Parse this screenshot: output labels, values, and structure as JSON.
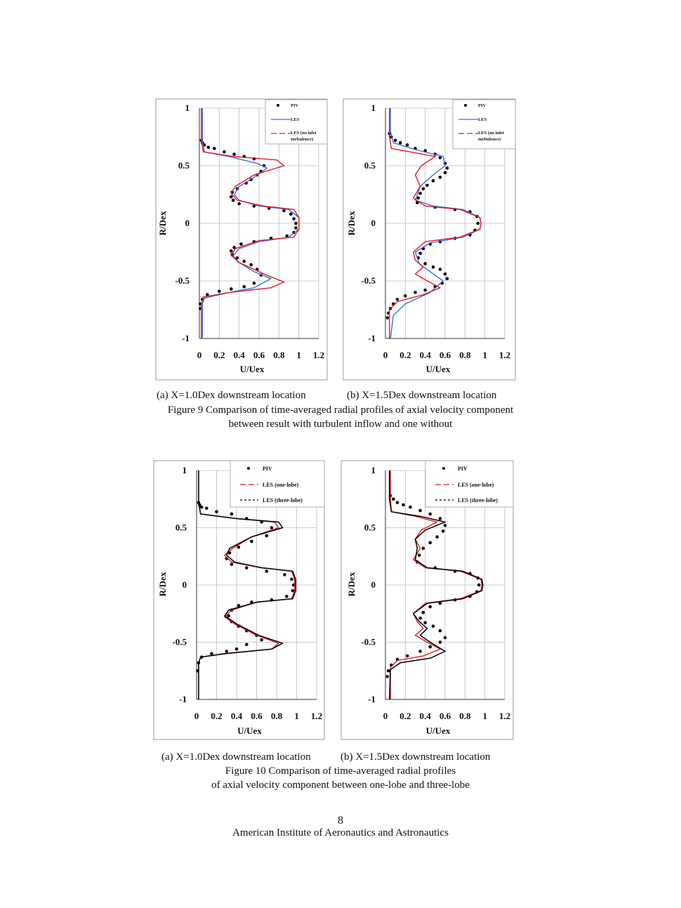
{
  "figure9": {
    "sub_a": "(a) X=1.0Dex downstream location",
    "sub_b": "(b) X=1.5Dex downstream location",
    "caption_line1": "Figure 9 Comparison of time-averaged radial profiles of axial velocity component",
    "caption_line2": "between result with turbulent inflow and one without"
  },
  "figure10": {
    "sub_a": "(a) X=1.0Dex downstream location",
    "sub_b": "(b) X=1.5Dex downstream location",
    "caption_line1": "Figure 10 Comparison of time-averaged radial profiles",
    "caption_line2": "of axial velocity component between one-lobe and three-lobe"
  },
  "footer": {
    "page_number": "8",
    "publisher": "American Institute of Aeronautics and Astronautics"
  },
  "colors": {
    "piv": "#000000",
    "les": "#3a6fd8",
    "les_red": "#e01b24",
    "three_lobe": "#000000"
  },
  "chart_data": [
    {
      "id": "fig9a",
      "type": "scatter",
      "xlabel": "U/Uex",
      "ylabel": "R/Dex",
      "xlim": [
        0,
        1.2
      ],
      "ylim": [
        -1,
        1
      ],
      "xticks": [
        "0",
        "0.2",
        "0.4",
        "0.6",
        "0.8",
        "1",
        "1.2"
      ],
      "yticks": [
        "1",
        "0.5",
        "0",
        "-0.5",
        "-1"
      ],
      "legend": [
        "PIV",
        "LES",
        "LES (no inlet",
        "turbulence)"
      ],
      "series": [
        {
          "name": "PIV",
          "style": "dots",
          "color": "#000000",
          "x": [
            0.02,
            0.03,
            0.05,
            0.09,
            0.15,
            0.25,
            0.35,
            0.45,
            0.55,
            0.65,
            0.62,
            0.58,
            0.52,
            0.47,
            0.38,
            0.33,
            0.32,
            0.34,
            0.4,
            0.55,
            0.7,
            0.85,
            0.92,
            0.95,
            0.97,
            0.97,
            0.95,
            0.88,
            0.72,
            0.55,
            0.42,
            0.35,
            0.32,
            0.33,
            0.38,
            0.45,
            0.52,
            0.58,
            0.62,
            0.55,
            0.45,
            0.32,
            0.2,
            0.08,
            0.03,
            0.01,
            0.01
          ],
          "y": [
            0.72,
            0.7,
            0.68,
            0.66,
            0.65,
            0.62,
            0.6,
            0.58,
            0.56,
            0.5,
            0.45,
            0.42,
            0.38,
            0.35,
            0.3,
            0.27,
            0.23,
            0.2,
            0.17,
            0.15,
            0.13,
            0.11,
            0.08,
            0.04,
            0.0,
            -0.04,
            -0.08,
            -0.11,
            -0.13,
            -0.16,
            -0.18,
            -0.21,
            -0.24,
            -0.27,
            -0.3,
            -0.33,
            -0.36,
            -0.4,
            -0.45,
            -0.52,
            -0.55,
            -0.57,
            -0.59,
            -0.62,
            -0.66,
            -0.7,
            -0.74
          ]
        },
        {
          "name": "LES",
          "style": "line",
          "color": "#3a6fd8",
          "x": [
            0.03,
            0.03,
            0.05,
            0.3,
            0.58,
            0.68,
            0.55,
            0.4,
            0.35,
            0.4,
            0.6,
            0.9,
            1.0,
            1.0,
            0.9,
            0.6,
            0.4,
            0.34,
            0.38,
            0.55,
            0.72,
            0.55,
            0.3,
            0.05,
            0.03,
            0.03
          ],
          "y": [
            1.0,
            0.7,
            0.62,
            0.58,
            0.52,
            0.48,
            0.4,
            0.32,
            0.25,
            0.2,
            0.15,
            0.12,
            0.05,
            -0.05,
            -0.12,
            -0.16,
            -0.22,
            -0.28,
            -0.33,
            -0.42,
            -0.48,
            -0.56,
            -0.6,
            -0.65,
            -0.7,
            -1.0
          ]
        },
        {
          "name": "LES (no inlet turbulence)",
          "style": "line",
          "color": "#e01b24",
          "x": [
            0.02,
            0.02,
            0.04,
            0.35,
            0.78,
            0.85,
            0.55,
            0.36,
            0.32,
            0.38,
            0.65,
            0.95,
            1.0,
            1.0,
            0.95,
            0.6,
            0.36,
            0.32,
            0.4,
            0.65,
            0.85,
            0.72,
            0.3,
            0.04,
            0.02,
            0.02
          ],
          "y": [
            1.0,
            0.72,
            0.62,
            0.58,
            0.55,
            0.5,
            0.42,
            0.32,
            0.26,
            0.2,
            0.15,
            0.12,
            0.05,
            -0.05,
            -0.12,
            -0.15,
            -0.22,
            -0.28,
            -0.34,
            -0.44,
            -0.51,
            -0.56,
            -0.6,
            -0.64,
            -0.7,
            -1.0
          ]
        }
      ]
    },
    {
      "id": "fig9b",
      "type": "scatter",
      "xlabel": "U/Uex",
      "ylabel": "R/Dex",
      "xlim": [
        0,
        1.2
      ],
      "ylim": [
        -1,
        1
      ],
      "xticks": [
        "0",
        "0.2",
        "0.4",
        "0.6",
        "0.8",
        "1",
        "1.2"
      ],
      "yticks": [
        "1",
        "0.5",
        "0",
        "-0.5",
        "-1"
      ],
      "legend": [
        "PIV",
        "LES",
        "LES (no inlet",
        "turbulence)"
      ],
      "series": [
        {
          "name": "PIV",
          "style": "dots",
          "color": "#000000",
          "x": [
            0.04,
            0.06,
            0.1,
            0.15,
            0.22,
            0.3,
            0.4,
            0.5,
            0.55,
            0.6,
            0.62,
            0.6,
            0.55,
            0.48,
            0.42,
            0.38,
            0.35,
            0.33,
            0.32,
            0.5,
            0.7,
            0.85,
            0.92,
            0.93,
            0.9,
            0.85,
            0.7,
            0.55,
            0.45,
            0.38,
            0.35,
            0.33,
            0.4,
            0.48,
            0.55,
            0.6,
            0.62,
            0.57,
            0.5,
            0.4,
            0.3,
            0.2,
            0.12,
            0.08,
            0.05,
            0.03,
            0.02
          ],
          "y": [
            0.78,
            0.75,
            0.72,
            0.7,
            0.68,
            0.65,
            0.63,
            0.6,
            0.57,
            0.52,
            0.48,
            0.44,
            0.4,
            0.37,
            0.33,
            0.3,
            0.26,
            0.22,
            0.18,
            0.14,
            0.12,
            0.1,
            0.06,
            0.0,
            -0.06,
            -0.1,
            -0.13,
            -0.16,
            -0.18,
            -0.22,
            -0.26,
            -0.3,
            -0.35,
            -0.38,
            -0.4,
            -0.44,
            -0.48,
            -0.52,
            -0.55,
            -0.58,
            -0.6,
            -0.63,
            -0.66,
            -0.7,
            -0.74,
            -0.78,
            -0.82
          ]
        },
        {
          "name": "LES",
          "style": "line",
          "color": "#3a6fd8",
          "x": [
            0.05,
            0.05,
            0.08,
            0.3,
            0.58,
            0.6,
            0.48,
            0.35,
            0.3,
            0.48,
            0.78,
            0.95,
            0.96,
            0.95,
            0.78,
            0.45,
            0.3,
            0.34,
            0.45,
            0.58,
            0.45,
            0.2,
            0.08,
            0.05
          ],
          "y": [
            1.0,
            0.8,
            0.7,
            0.64,
            0.58,
            0.5,
            0.42,
            0.32,
            0.2,
            0.15,
            0.12,
            0.05,
            0.0,
            -0.05,
            -0.12,
            -0.17,
            -0.25,
            -0.35,
            -0.42,
            -0.5,
            -0.6,
            -0.7,
            -0.8,
            -1.0
          ]
        },
        {
          "name": "LES (no inlet turbulence)",
          "style": "line",
          "color": "#e01b24",
          "x": [
            0.04,
            0.04,
            0.06,
            0.25,
            0.5,
            0.36,
            0.3,
            0.35,
            0.28,
            0.4,
            0.75,
            0.95,
            0.96,
            0.95,
            0.75,
            0.4,
            0.28,
            0.3,
            0.38,
            0.3,
            0.42,
            0.55,
            0.38,
            0.12,
            0.04,
            0.04
          ],
          "y": [
            1.0,
            0.75,
            0.65,
            0.62,
            0.58,
            0.5,
            0.42,
            0.32,
            0.22,
            0.15,
            0.12,
            0.05,
            0.0,
            -0.05,
            -0.12,
            -0.16,
            -0.25,
            -0.32,
            -0.38,
            -0.44,
            -0.5,
            -0.56,
            -0.62,
            -0.68,
            -0.75,
            -1.0
          ]
        }
      ]
    },
    {
      "id": "fig10a",
      "type": "scatter",
      "xlabel": "U/Uex",
      "ylabel": "R/Dex",
      "xlim": [
        0,
        1.2
      ],
      "ylim": [
        -1,
        1
      ],
      "xticks": [
        "0",
        "0.2",
        "0.4",
        "0.6",
        "0.8",
        "1",
        "1.2"
      ],
      "yticks": [
        "1",
        "0.5",
        "0",
        "-0.5",
        "-1"
      ],
      "legend": [
        "PIV",
        "LES (one-lobe)",
        "LES (three-lobe)"
      ],
      "series": [
        {
          "name": "PIV",
          "style": "dots",
          "color": "#000000",
          "x": [
            0.02,
            0.03,
            0.05,
            0.1,
            0.2,
            0.35,
            0.5,
            0.65,
            0.75,
            0.7,
            0.55,
            0.42,
            0.33,
            0.3,
            0.35,
            0.5,
            0.7,
            0.88,
            0.95,
            0.97,
            0.96,
            0.9,
            0.75,
            0.55,
            0.42,
            0.35,
            0.32,
            0.35,
            0.42,
            0.5,
            0.6,
            0.65,
            0.5,
            0.4,
            0.3,
            0.15,
            0.05,
            0.02,
            0.01
          ],
          "y": [
            0.72,
            0.7,
            0.68,
            0.67,
            0.64,
            0.62,
            0.58,
            0.55,
            0.5,
            0.43,
            0.38,
            0.33,
            0.28,
            0.23,
            0.18,
            0.15,
            0.12,
            0.09,
            0.05,
            0.0,
            -0.05,
            -0.1,
            -0.13,
            -0.15,
            -0.18,
            -0.22,
            -0.27,
            -0.32,
            -0.36,
            -0.4,
            -0.44,
            -0.48,
            -0.52,
            -0.56,
            -0.58,
            -0.6,
            -0.63,
            -0.68,
            -0.75
          ]
        },
        {
          "name": "LES (one-lobe)",
          "style": "line",
          "color": "#e01b24",
          "x": [
            0.02,
            0.02,
            0.04,
            0.4,
            0.78,
            0.82,
            0.55,
            0.36,
            0.28,
            0.35,
            0.65,
            0.95,
            0.98,
            0.98,
            0.95,
            0.6,
            0.35,
            0.28,
            0.38,
            0.6,
            0.82,
            0.75,
            0.3,
            0.04,
            0.02,
            0.02
          ],
          "y": [
            1.0,
            0.72,
            0.62,
            0.58,
            0.55,
            0.5,
            0.42,
            0.32,
            0.26,
            0.2,
            0.15,
            0.12,
            0.05,
            -0.05,
            -0.12,
            -0.15,
            -0.22,
            -0.28,
            -0.34,
            -0.44,
            -0.51,
            -0.56,
            -0.6,
            -0.63,
            -0.68,
            -1.0
          ]
        },
        {
          "name": "LES (three-lobe)",
          "style": "line-solid-dash",
          "color": "#000000",
          "x": [
            0.02,
            0.02,
            0.04,
            0.4,
            0.82,
            0.86,
            0.55,
            0.33,
            0.3,
            0.38,
            0.65,
            0.96,
            0.99,
            0.99,
            0.96,
            0.6,
            0.32,
            0.28,
            0.4,
            0.62,
            0.86,
            0.75,
            0.28,
            0.04,
            0.02,
            0.02
          ],
          "y": [
            1.0,
            0.72,
            0.62,
            0.58,
            0.55,
            0.5,
            0.42,
            0.32,
            0.26,
            0.2,
            0.15,
            0.12,
            0.05,
            -0.05,
            -0.12,
            -0.15,
            -0.22,
            -0.27,
            -0.34,
            -0.44,
            -0.51,
            -0.56,
            -0.6,
            -0.63,
            -0.68,
            -1.0
          ]
        }
      ]
    },
    {
      "id": "fig10b",
      "type": "scatter",
      "xlabel": "U/Uex",
      "ylabel": "R/Dex",
      "xlim": [
        0,
        1.2
      ],
      "ylim": [
        -1,
        1
      ],
      "xticks": [
        "0",
        "0.2",
        "0.4",
        "0.6",
        "0.8",
        "1",
        "1.2"
      ],
      "yticks": [
        "1",
        "0.5",
        "0",
        "-0.5",
        "-1"
      ],
      "legend": [
        "PIV",
        "LES (one-lobe)",
        "LES (three-lobe)"
      ],
      "series": [
        {
          "name": "PIV",
          "style": "dots",
          "color": "#000000",
          "x": [
            0.05,
            0.08,
            0.12,
            0.18,
            0.25,
            0.35,
            0.45,
            0.55,
            0.6,
            0.58,
            0.52,
            0.45,
            0.38,
            0.34,
            0.32,
            0.5,
            0.7,
            0.85,
            0.93,
            0.94,
            0.92,
            0.85,
            0.7,
            0.55,
            0.45,
            0.38,
            0.35,
            0.4,
            0.48,
            0.55,
            0.6,
            0.55,
            0.45,
            0.35,
            0.22,
            0.12,
            0.06,
            0.03,
            0.02
          ],
          "y": [
            0.78,
            0.75,
            0.72,
            0.7,
            0.68,
            0.65,
            0.62,
            0.58,
            0.52,
            0.47,
            0.42,
            0.37,
            0.32,
            0.26,
            0.2,
            0.15,
            0.12,
            0.1,
            0.06,
            0.0,
            -0.06,
            -0.1,
            -0.13,
            -0.16,
            -0.19,
            -0.24,
            -0.29,
            -0.33,
            -0.36,
            -0.4,
            -0.46,
            -0.5,
            -0.54,
            -0.58,
            -0.62,
            -0.65,
            -0.7,
            -0.75,
            -0.8
          ]
        },
        {
          "name": "LES (one-lobe)",
          "style": "line",
          "color": "#e01b24",
          "x": [
            0.05,
            0.05,
            0.06,
            0.3,
            0.52,
            0.36,
            0.3,
            0.35,
            0.28,
            0.4,
            0.75,
            0.96,
            0.97,
            0.96,
            0.75,
            0.4,
            0.28,
            0.32,
            0.38,
            0.3,
            0.42,
            0.55,
            0.38,
            0.12,
            0.05,
            0.05
          ],
          "y": [
            1.0,
            0.75,
            0.64,
            0.6,
            0.55,
            0.48,
            0.4,
            0.32,
            0.22,
            0.15,
            0.12,
            0.05,
            0.0,
            -0.05,
            -0.12,
            -0.16,
            -0.25,
            -0.32,
            -0.38,
            -0.44,
            -0.5,
            -0.56,
            -0.62,
            -0.66,
            -0.72,
            -1.0
          ]
        },
        {
          "name": "LES (three-lobe)",
          "style": "line-solid-dash",
          "color": "#000000",
          "x": [
            0.04,
            0.04,
            0.06,
            0.35,
            0.6,
            0.4,
            0.3,
            0.32,
            0.3,
            0.42,
            0.78,
            0.97,
            0.98,
            0.97,
            0.78,
            0.42,
            0.28,
            0.34,
            0.42,
            0.35,
            0.45,
            0.6,
            0.45,
            0.15,
            0.05,
            0.04
          ],
          "y": [
            1.0,
            0.75,
            0.64,
            0.6,
            0.55,
            0.48,
            0.4,
            0.32,
            0.22,
            0.15,
            0.12,
            0.05,
            0.0,
            -0.05,
            -0.12,
            -0.16,
            -0.25,
            -0.32,
            -0.38,
            -0.44,
            -0.5,
            -0.58,
            -0.64,
            -0.68,
            -0.74,
            -1.0
          ]
        }
      ]
    }
  ]
}
